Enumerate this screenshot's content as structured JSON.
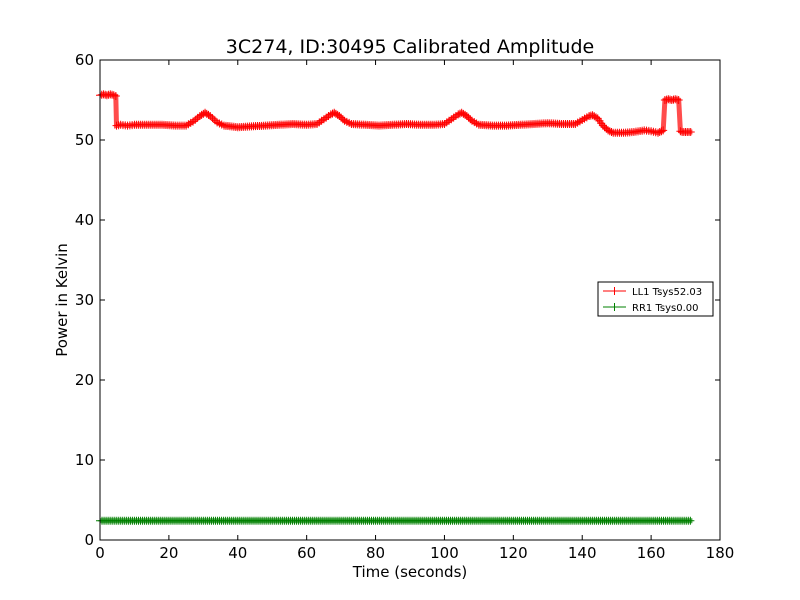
{
  "chart_data": {
    "type": "line",
    "title": "3C274, ID:30495 Calibrated Amplitude",
    "xlabel": "Time (seconds)",
    "ylabel": "Power in Kelvin",
    "xlim": [
      0,
      180
    ],
    "ylim": [
      0,
      60
    ],
    "xticks": [
      0,
      20,
      40,
      60,
      80,
      100,
      120,
      140,
      160,
      180
    ],
    "yticks": [
      0,
      10,
      20,
      30,
      40,
      50,
      60
    ],
    "grid": false,
    "legend_position": "right",
    "series": [
      {
        "name": "LL1 Tsys52.03",
        "color": "#ff0000",
        "marker": "+",
        "points": [
          [
            0,
            55.6
          ],
          [
            1,
            55.7
          ],
          [
            2,
            55.6
          ],
          [
            3,
            55.7
          ],
          [
            4,
            55.6
          ],
          [
            4.6,
            55.5
          ],
          [
            4.8,
            51.8
          ],
          [
            6,
            51.9
          ],
          [
            8,
            51.8
          ],
          [
            10,
            51.9
          ],
          [
            14,
            51.9
          ],
          [
            18,
            51.9
          ],
          [
            22,
            51.8
          ],
          [
            25,
            51.8
          ],
          [
            27,
            52.3
          ],
          [
            29,
            53.0
          ],
          [
            30.5,
            53.4
          ],
          [
            32,
            53.0
          ],
          [
            34,
            52.2
          ],
          [
            36,
            51.8
          ],
          [
            40,
            51.6
          ],
          [
            44,
            51.7
          ],
          [
            48,
            51.8
          ],
          [
            52,
            51.9
          ],
          [
            56,
            52.0
          ],
          [
            60,
            51.9
          ],
          [
            63,
            52.0
          ],
          [
            65,
            52.6
          ],
          [
            67,
            53.2
          ],
          [
            68,
            53.4
          ],
          [
            69.5,
            53.0
          ],
          [
            71,
            52.4
          ],
          [
            73,
            52.0
          ],
          [
            77,
            51.9
          ],
          [
            81,
            51.8
          ],
          [
            85,
            51.9
          ],
          [
            89,
            52.0
          ],
          [
            93,
            51.9
          ],
          [
            97,
            51.9
          ],
          [
            100,
            52.0
          ],
          [
            102,
            52.6
          ],
          [
            104,
            53.2
          ],
          [
            105,
            53.4
          ],
          [
            106.5,
            53.0
          ],
          [
            108,
            52.4
          ],
          [
            110,
            51.9
          ],
          [
            114,
            51.8
          ],
          [
            118,
            51.8
          ],
          [
            122,
            51.9
          ],
          [
            126,
            52.0
          ],
          [
            130,
            52.1
          ],
          [
            134,
            52.0
          ],
          [
            138,
            52.0
          ],
          [
            140,
            52.5
          ],
          [
            142,
            53.0
          ],
          [
            143,
            53.1
          ],
          [
            144.5,
            52.7
          ],
          [
            146,
            51.8
          ],
          [
            147.5,
            51.2
          ],
          [
            149,
            50.9
          ],
          [
            152,
            50.9
          ],
          [
            155,
            51.0
          ],
          [
            158,
            51.2
          ],
          [
            160,
            51.1
          ],
          [
            162,
            50.9
          ],
          [
            163.5,
            51.2
          ],
          [
            164,
            55.0
          ],
          [
            165,
            55.1
          ],
          [
            166,
            55.0
          ],
          [
            167,
            55.1
          ],
          [
            168,
            55.0
          ],
          [
            168.5,
            51.1
          ],
          [
            169,
            51.0
          ],
          [
            170,
            51.0
          ],
          [
            171,
            51.0
          ],
          [
            172,
            51.0
          ]
        ]
      },
      {
        "name": "RR1 Tsys0.00",
        "color": "#008000",
        "marker": "+",
        "points": [
          [
            0,
            2.4
          ],
          [
            10,
            2.4
          ],
          [
            20,
            2.4
          ],
          [
            30,
            2.4
          ],
          [
            40,
            2.4
          ],
          [
            50,
            2.4
          ],
          [
            60,
            2.4
          ],
          [
            70,
            2.4
          ],
          [
            80,
            2.4
          ],
          [
            90,
            2.4
          ],
          [
            100,
            2.4
          ],
          [
            110,
            2.4
          ],
          [
            120,
            2.4
          ],
          [
            130,
            2.4
          ],
          [
            140,
            2.4
          ],
          [
            150,
            2.4
          ],
          [
            160,
            2.4
          ],
          [
            172,
            2.4
          ]
        ]
      }
    ]
  }
}
